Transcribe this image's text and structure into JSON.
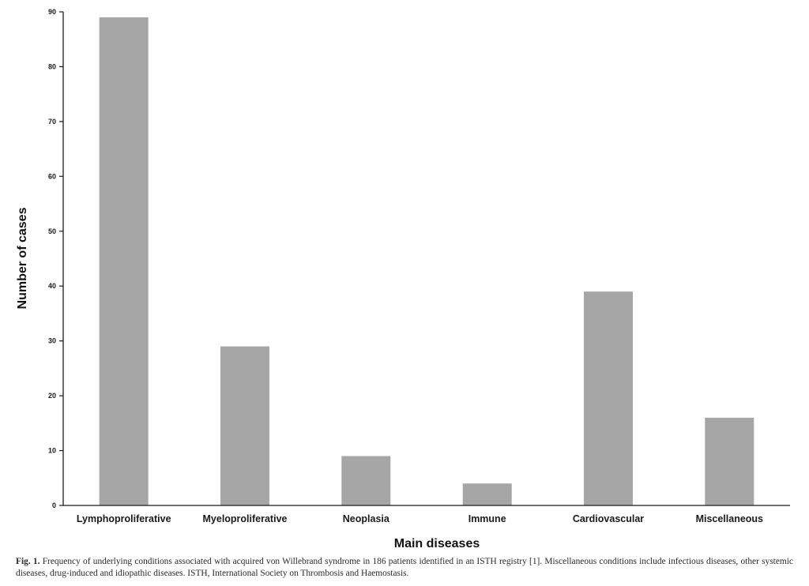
{
  "chart_data": {
    "type": "bar",
    "categories": [
      "Lymphoproliferative",
      "Myeloproliferative",
      "Neoplasia",
      "Immune",
      "Cardiovascular",
      "Miscellaneous"
    ],
    "values": [
      89,
      29,
      9,
      4,
      39,
      16
    ],
    "xlabel": "Main diseases",
    "ylabel": "Number of cases",
    "ylim": [
      0,
      90
    ],
    "yticks": [
      0,
      10,
      20,
      30,
      40,
      50,
      60,
      70,
      80,
      90
    ],
    "grid": false,
    "bar_color": "#a6a6a6",
    "axis_color": "#1a1a1a"
  },
  "caption": {
    "label": "Fig. 1.",
    "text": "Frequency of underlying conditions associated with acquired von Willebrand syndrome in 186 patients identified in an ISTH registry [1]. Miscellaneous conditions include infectious diseases, other systemic diseases, drug-induced and idiopathic diseases. ISTH, International Society on Thrombosis and Haemostasis."
  }
}
